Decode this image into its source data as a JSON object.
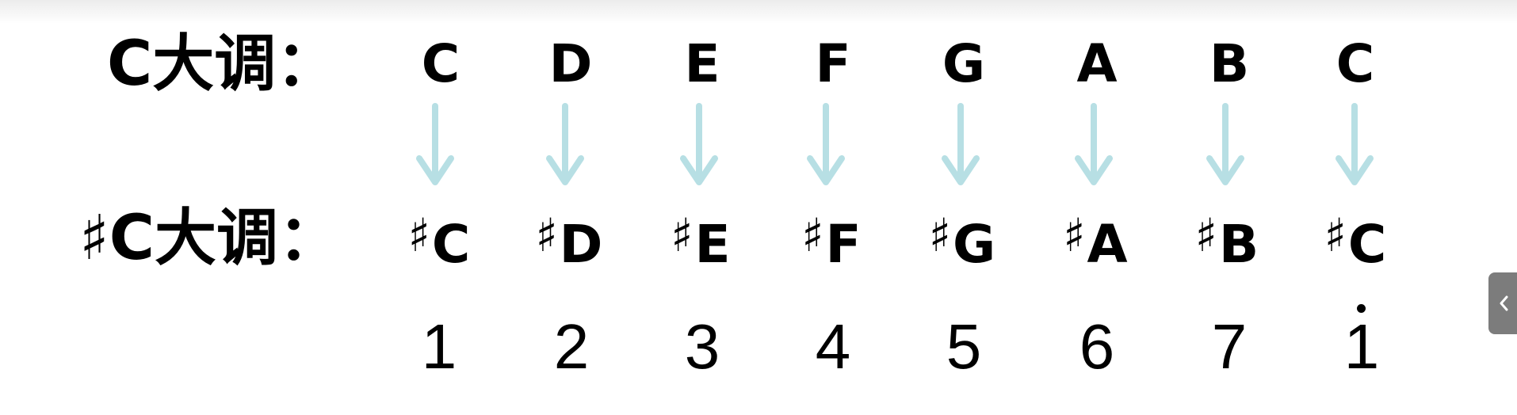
{
  "rows": {
    "major_c_label": "C大调：",
    "major_csharp_label": "♯C大调："
  },
  "notes_c": [
    "C",
    "D",
    "E",
    "F",
    "G",
    "A",
    "B",
    "C"
  ],
  "sharp_symbol": "♯",
  "notes_csharp": [
    "C",
    "D",
    "E",
    "F",
    "G",
    "A",
    "B",
    "C"
  ],
  "digits": [
    "1",
    "2",
    "3",
    "4",
    "5",
    "6",
    "7",
    "1"
  ],
  "arrow_color": "#b7dfe4",
  "side_tab": {
    "icon": "chevron-left-icon",
    "color": "#7c7c7c"
  }
}
